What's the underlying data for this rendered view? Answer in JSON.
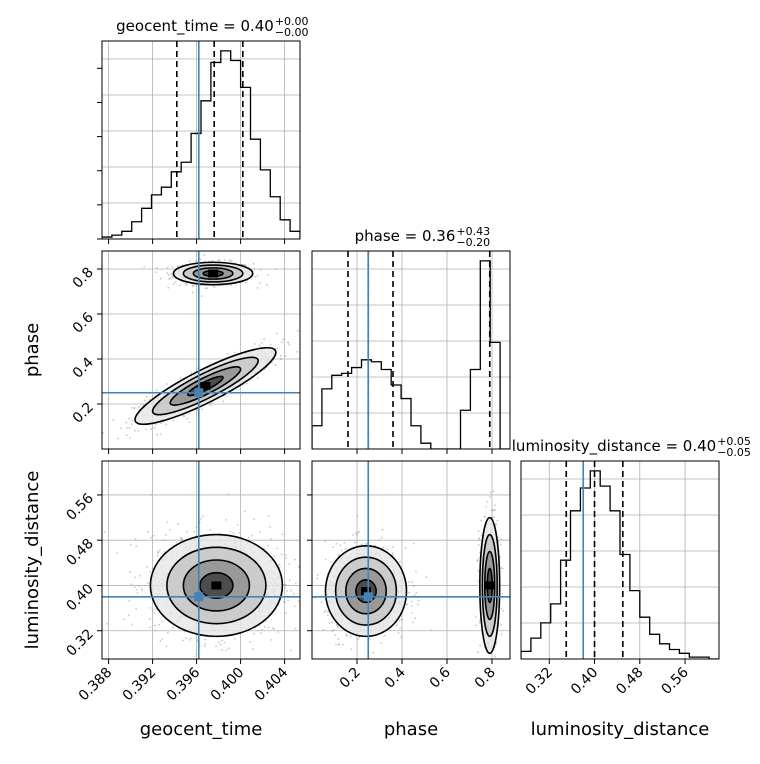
{
  "figure_title": "",
  "colors": {
    "truth": "#4682b4",
    "hist": "#000000",
    "grid": "#b0b0b0",
    "points": "#9a9a9a"
  },
  "chart_data": {
    "type": "corner",
    "parameters": [
      "geocent_time",
      "phase",
      "luminosity_distance"
    ],
    "truths": {
      "geocent_time": 0.3962,
      "phase": 0.25,
      "luminosity_distance": 0.38
    },
    "grid": true,
    "axes": {
      "geocent_time": {
        "label": "geocent_time",
        "lim": [
          0.3874,
          0.4054
        ],
        "ticks": [
          0.388,
          0.392,
          0.396,
          0.4,
          0.404
        ],
        "tick_labels": [
          "0.388",
          "0.392",
          "0.396",
          "0.400",
          "0.404"
        ]
      },
      "phase": {
        "label": "phase",
        "lim": [
          0.0,
          0.88
        ],
        "ticks": [
          0.2,
          0.4,
          0.6,
          0.8
        ],
        "tick_labels": [
          "0.2",
          "0.4",
          "0.6",
          "0.8"
        ]
      },
      "luminosity_distance": {
        "label": "luminosity_distance",
        "lim": [
          0.27,
          0.62
        ],
        "ticks": [
          0.32,
          0.4,
          0.48,
          0.56
        ],
        "tick_labels": [
          "0.32",
          "0.40",
          "0.48",
          "0.56"
        ]
      }
    },
    "titles": [
      {
        "param": "geocent_time",
        "main": "geocent_time = 0.40",
        "sup": "+0.00",
        "sub": "−0.00"
      },
      {
        "param": "phase",
        "main": "phase = 0.36",
        "sup": "+0.43",
        "sub": "−0.20"
      },
      {
        "param": "luminosity_distance",
        "main": "luminosity_distance = 0.40",
        "sup": "+0.05",
        "sub": "−0.05"
      }
    ],
    "marginals": [
      {
        "param": "geocent_time",
        "quantiles": [
          0.3942,
          0.3976,
          0.4002
        ],
        "bin_edges": [
          0.3874,
          0.3883,
          0.3892,
          0.3901,
          0.391,
          0.3919,
          0.3928,
          0.3937,
          0.3946,
          0.3955,
          0.3964,
          0.3973,
          0.3982,
          0.3991,
          0.4,
          0.4009,
          0.4018,
          0.4027,
          0.4036,
          0.4045,
          0.4054
        ],
        "heights": [
          1,
          2,
          4,
          9,
          16,
          23,
          27,
          35,
          40,
          55,
          72,
          92,
          98,
          93,
          79,
          52,
          36,
          22,
          10,
          4
        ]
      },
      {
        "param": "phase",
        "quantiles": [
          0.16,
          0.25,
          0.36,
          0.79
        ],
        "bin_edges": [
          0.0,
          0.044,
          0.088,
          0.132,
          0.176,
          0.22,
          0.264,
          0.308,
          0.352,
          0.396,
          0.44,
          0.484,
          0.528,
          0.572,
          0.616,
          0.66,
          0.704,
          0.748,
          0.792,
          0.836,
          0.88
        ],
        "heights": [
          12,
          31,
          38,
          39,
          42,
          46,
          45,
          41,
          33,
          26,
          12,
          3,
          0,
          0,
          0,
          20,
          41,
          97,
          55,
          0
        ]
      },
      {
        "param": "luminosity_distance",
        "quantiles": [
          0.35,
          0.4,
          0.45
        ],
        "bin_edges": [
          0.27,
          0.2875,
          0.305,
          0.3225,
          0.34,
          0.3575,
          0.375,
          0.3925,
          0.41,
          0.4275,
          0.445,
          0.4625,
          0.48,
          0.4975,
          0.515,
          0.5325,
          0.55,
          0.5675,
          0.585,
          0.6025,
          0.62
        ],
        "heights": [
          4,
          11,
          19,
          29,
          52,
          78,
          90,
          99,
          91,
          78,
          55,
          36,
          22,
          13,
          8,
          5,
          3,
          1,
          1,
          0
        ]
      }
    ],
    "joint": [
      {
        "x": "geocent_time",
        "y": "phase",
        "modes": [
          {
            "cx": 0.3975,
            "cy": 0.78,
            "sx": 0.0018,
            "sy": 0.025,
            "rho": 0.0,
            "weight": 0.45
          },
          {
            "cx": 0.3968,
            "cy": 0.28,
            "sx": 0.0032,
            "sy": 0.085,
            "rho": 0.88,
            "weight": 0.55
          }
        ]
      },
      {
        "x": "geocent_time",
        "y": "luminosity_distance",
        "modes": [
          {
            "cx": 0.3978,
            "cy": 0.4,
            "sx": 0.003,
            "sy": 0.045,
            "rho": 0.0,
            "weight": 1.0
          }
        ]
      },
      {
        "x": "phase",
        "y": "luminosity_distance",
        "modes": [
          {
            "cx": 0.24,
            "cy": 0.39,
            "sx": 0.09,
            "sy": 0.04,
            "rho": 0.0,
            "weight": 0.6
          },
          {
            "cx": 0.79,
            "cy": 0.4,
            "sx": 0.022,
            "sy": 0.06,
            "rho": 0.0,
            "weight": 0.4
          }
        ]
      }
    ]
  }
}
